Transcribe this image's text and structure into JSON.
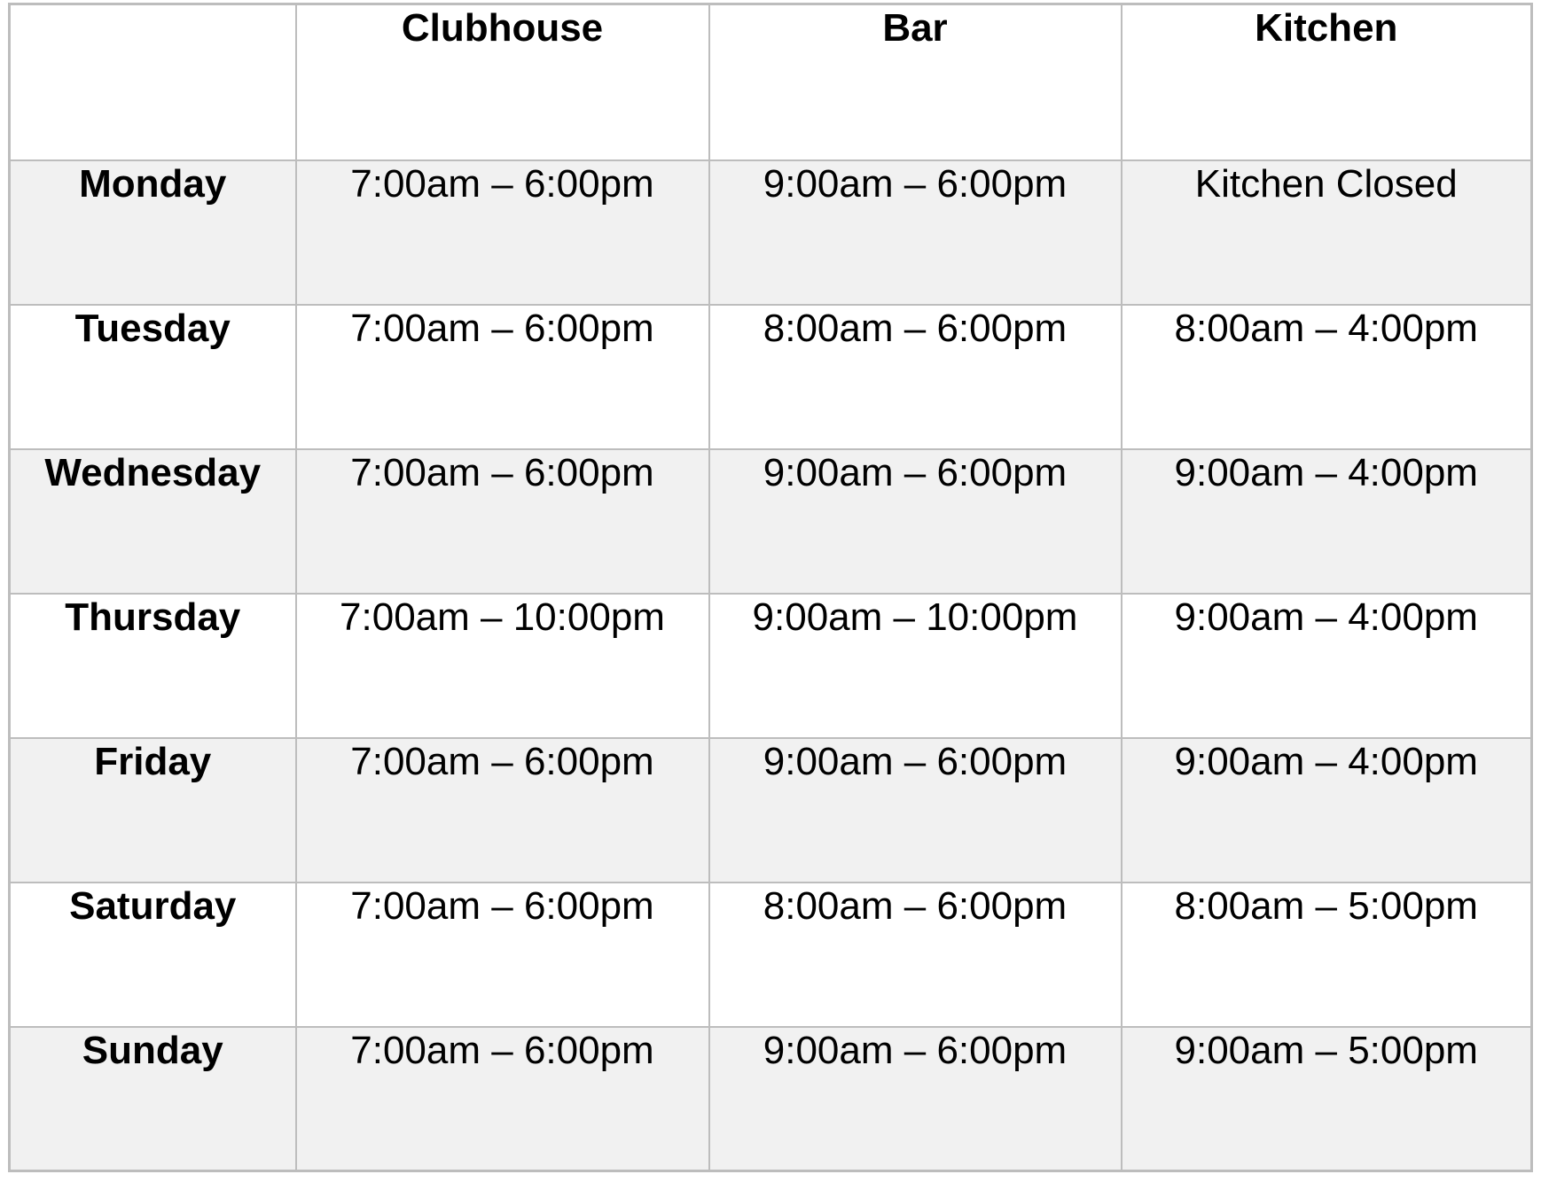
{
  "table": {
    "columns": [
      "",
      "Clubhouse",
      "Bar",
      "Kitchen"
    ],
    "rows": [
      {
        "day": "Monday",
        "clubhouse": "7:00am – 6:00pm",
        "bar": "9:00am – 6:00pm",
        "kitchen": "Kitchen Closed"
      },
      {
        "day": "Tuesday",
        "clubhouse": "7:00am – 6:00pm",
        "bar": "8:00am – 6:00pm",
        "kitchen": "8:00am – 4:00pm"
      },
      {
        "day": "Wednesday",
        "clubhouse": "7:00am – 6:00pm",
        "bar": "9:00am – 6:00pm",
        "kitchen": "9:00am – 4:00pm"
      },
      {
        "day": "Thursday",
        "clubhouse": "7:00am – 10:00pm",
        "bar": "9:00am – 10:00pm",
        "kitchen": "9:00am – 4:00pm"
      },
      {
        "day": "Friday",
        "clubhouse": "7:00am – 6:00pm",
        "bar": "9:00am – 6:00pm",
        "kitchen": "9:00am – 4:00pm"
      },
      {
        "day": "Saturday",
        "clubhouse": "7:00am – 6:00pm",
        "bar": "8:00am – 6:00pm",
        "kitchen": "8:00am – 5:00pm"
      },
      {
        "day": "Sunday",
        "clubhouse": "7:00am – 6:00pm",
        "bar": "9:00am – 6:00pm",
        "kitchen": "9:00am – 5:00pm"
      }
    ]
  },
  "colors": {
    "row_stripe": "#f1f1f1",
    "grid_border": "#bdbdbd",
    "text": "#000000",
    "background": "#ffffff"
  }
}
